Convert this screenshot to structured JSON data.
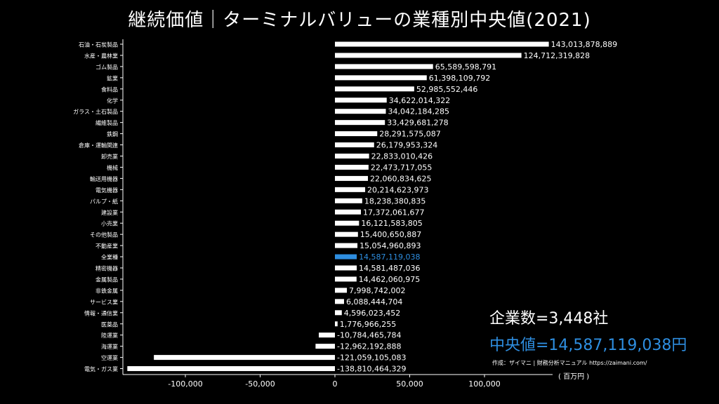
{
  "title": "継続価値｜ターミナルバリューの業種別中央値(2021)",
  "info": {
    "companies": "企業数=3,448社",
    "median": "中央値=14,587,119,038円",
    "credit": "作成：ザイマニ | 財務分析マニュアル https://zaimani.com/",
    "unit": "( 百万円 )"
  },
  "colors": {
    "bar": "#ffffff",
    "highlight": "#2e8ee0",
    "background": "#000000"
  },
  "chart_data": {
    "type": "bar",
    "orientation": "horizontal",
    "title": "継続価値｜ターミナルバリューの業種別中央値(2021)",
    "xlabel": "( 百万円 )",
    "xlim": [
      -140000,
      145000
    ],
    "xticks": [
      -100000,
      -50000,
      0,
      50000,
      100000
    ],
    "xtick_labels": [
      "-100,000",
      "-50,000",
      "0",
      "50,000",
      "100,000"
    ],
    "highlight_category": "全業種",
    "categories": [
      "石油・石炭製品",
      "水産・農林業",
      "ゴム製品",
      "鉱業",
      "食料品",
      "化学",
      "ガラス・土石製品",
      "繊維製品",
      "鉄鋼",
      "倉庫・運輸関連",
      "卸売業",
      "機械",
      "輸送用機器",
      "電気機器",
      "パルプ・紙",
      "建設業",
      "小売業",
      "その他製品",
      "不動産業",
      "全業種",
      "精密機器",
      "金属製品",
      "非鉄金属",
      "サービス業",
      "情報・通信業",
      "医薬品",
      "陸運業",
      "海運業",
      "空運業",
      "電気・ガス業"
    ],
    "values": [
      143013878889,
      124712319828,
      65589598791,
      61398109792,
      52985552446,
      34622014322,
      34042184285,
      33429681278,
      28291575087,
      26179953324,
      22833010426,
      22473717055,
      22060834625,
      20214623973,
      18238380835,
      17372061677,
      16121583805,
      15400650887,
      15054960893,
      14587119038,
      14581487036,
      14462060975,
      7998742002,
      6088444704,
      4596023452,
      1776966255,
      -10784465784,
      -12962192888,
      -121059105083,
      -138810464329
    ],
    "value_labels": [
      "143,013,878,889",
      "124,712,319,828",
      "65,589,598,791",
      "61,398,109,792",
      "52,985,552,446",
      "34,622,014,322",
      "34,042,184,285",
      "33,429,681,278",
      "28,291,575,087",
      "26,179,953,324",
      "22,833,010,426",
      "22,473,717,055",
      "22,060,834,625",
      "20,214,623,973",
      "18,238,380,835",
      "17,372,061,677",
      "16,121,583,805",
      "15,400,650,887",
      "15,054,960,893",
      "14,587,119,038",
      "14,581,487,036",
      "14,462,060,975",
      "7,998,742,002",
      "6,088,444,704",
      "4,596,023,452",
      "1,776,966,255",
      "-10,784,465,784",
      "-12,962,192,888",
      "-121,059,105,083",
      "-138,810,464,329"
    ]
  }
}
